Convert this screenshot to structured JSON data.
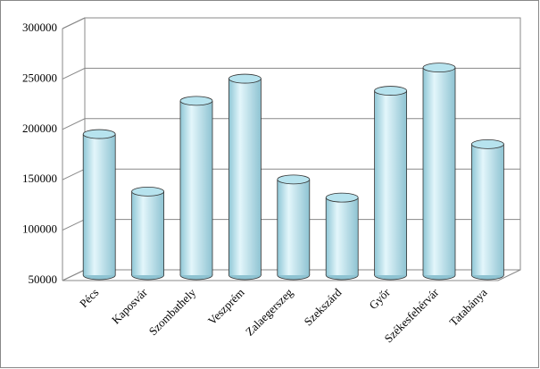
{
  "chart_data": {
    "type": "bar",
    "categories": [
      "Pécs",
      "Kaposvár",
      "Szombathely",
      "Veszprém",
      "Zalaegerszeg",
      "Szekszárd",
      "Győr",
      "Székesfehérvár",
      "Tatabánya"
    ],
    "values": [
      190000,
      133000,
      223000,
      245000,
      145000,
      127000,
      233000,
      256000,
      180000
    ],
    "color": "#b7e3ee",
    "ylim": [
      50000,
      300000
    ],
    "yticks": [
      50000,
      100000,
      150000,
      200000,
      250000,
      300000
    ],
    "grid": true
  }
}
